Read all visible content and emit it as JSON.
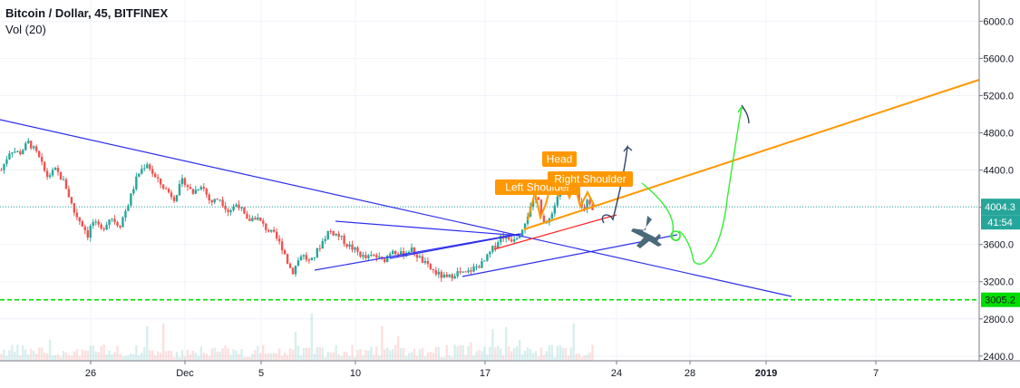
{
  "header": {
    "title": "Bitcoin / Dollar, 45, BITFINEX",
    "indicator": "Vol (20)"
  },
  "colors": {
    "candle_up": "#26a69a",
    "candle_down": "#ef5350",
    "grid": "#f0f3fa",
    "price_line": "#26a69a",
    "support_line": "#00dd00",
    "orange": "#ff9800",
    "blue": "#2d2ff0",
    "red": "#ff2222",
    "green_path": "#33ee33",
    "navy_path": "#334466",
    "plane": "#4a6a7a"
  },
  "chart_data": {
    "type": "candlestick",
    "x_axis_ticks": [
      "26",
      "Dec",
      "5",
      "10",
      "17",
      "24",
      "28",
      "2019",
      "7"
    ],
    "y_axis_ticks": [
      "6000.0",
      "5600.0",
      "5200.0",
      "4800.0",
      "4400.0",
      "4000.0",
      "3600.0",
      "3200.0",
      "2800.0",
      "2400.0"
    ],
    "ylim": [
      2330,
      6130
    ],
    "price_path": [
      [
        0,
        4400
      ],
      [
        2,
        4620
      ],
      [
        4,
        4580
      ],
      [
        6,
        4700
      ],
      [
        8,
        4560
      ],
      [
        10,
        4330
      ],
      [
        12,
        4400
      ],
      [
        14,
        4250
      ],
      [
        16,
        3950
      ],
      [
        18,
        3800
      ],
      [
        19,
        3700
      ],
      [
        20,
        3850
      ],
      [
        22,
        3750
      ],
      [
        24,
        3900
      ],
      [
        26,
        3800
      ],
      [
        28,
        4050
      ],
      [
        30,
        4350
      ],
      [
        32,
        4480
      ],
      [
        34,
        4300
      ],
      [
        36,
        4200
      ],
      [
        38,
        4100
      ],
      [
        40,
        4300
      ],
      [
        42,
        4150
      ],
      [
        44,
        4250
      ],
      [
        46,
        4050
      ],
      [
        48,
        4100
      ],
      [
        50,
        3950
      ],
      [
        52,
        4050
      ],
      [
        54,
        3850
      ],
      [
        56,
        3900
      ],
      [
        58,
        3780
      ],
      [
        60,
        3700
      ],
      [
        62,
        3550
      ],
      [
        63,
        3400
      ],
      [
        64,
        3300
      ],
      [
        66,
        3500
      ],
      [
        68,
        3400
      ],
      [
        70,
        3580
      ],
      [
        72,
        3750
      ],
      [
        74,
        3700
      ],
      [
        76,
        3600
      ],
      [
        78,
        3530
      ],
      [
        80,
        3450
      ],
      [
        82,
        3480
      ],
      [
        84,
        3420
      ],
      [
        86,
        3550
      ],
      [
        88,
        3490
      ],
      [
        90,
        3550
      ],
      [
        92,
        3450
      ],
      [
        94,
        3350
      ],
      [
        96,
        3280
      ],
      [
        98,
        3230
      ],
      [
        100,
        3300
      ],
      [
        102,
        3280
      ],
      [
        104,
        3350
      ],
      [
        106,
        3400
      ],
      [
        108,
        3550
      ],
      [
        110,
        3700
      ],
      [
        112,
        3650
      ],
      [
        114,
        3720
      ],
      [
        116,
        3950
      ],
      [
        118,
        4150
      ],
      [
        119,
        3850
      ],
      [
        120,
        3800
      ],
      [
        121,
        3950
      ],
      [
        122,
        4050
      ],
      [
        123,
        4300
      ],
      [
        124,
        4220
      ],
      [
        125,
        4150
      ],
      [
        126,
        4200
      ],
      [
        127,
        4050
      ],
      [
        128,
        3960
      ],
      [
        129,
        4100
      ],
      [
        130,
        3990
      ]
    ],
    "price_label": "4004.3",
    "price_value": 4004.3,
    "countdown_label": "41:54",
    "support_label": "3005.2",
    "support_value": 3005.2,
    "annotations": [
      "Left Shoulder",
      "Head",
      "Right Shoulder"
    ],
    "grid": true
  }
}
